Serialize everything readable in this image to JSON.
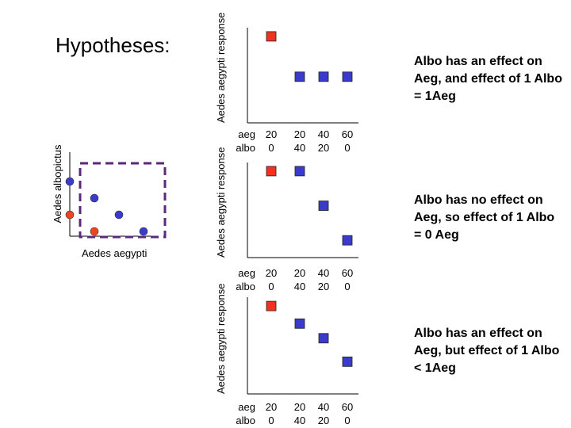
{
  "title": "Hypotheses:",
  "scatter": {
    "xlabel": "Aedes aegypti",
    "ylabel": "Aedes albopictus",
    "points": [
      {
        "x": 0,
        "y": 3,
        "color": "#3a3acc"
      },
      {
        "x": 1,
        "y": 2,
        "color": "#3a3acc"
      },
      {
        "x": 2,
        "y": 1,
        "color": "#3a3acc"
      },
      {
        "x": 3,
        "y": 0,
        "color": "#3a3acc"
      },
      {
        "x": 0,
        "y": 1,
        "color": "#ee4422"
      },
      {
        "x": 1,
        "y": 0,
        "color": "#ee4422"
      }
    ]
  },
  "colors": {
    "red": "#ee3322",
    "blue": "#3a3acc",
    "dashed": "#5a2a7a"
  },
  "row_labels": {
    "aeg": "aeg",
    "albo": "albo"
  },
  "ticks": [
    {
      "aeg": "20",
      "albo": "0"
    },
    {
      "aeg": "20",
      "albo": "40"
    },
    {
      "aeg": "40",
      "albo": "20"
    },
    {
      "aeg": "60",
      "albo": "0"
    }
  ],
  "panels": [
    {
      "ylabel": "Aedes aegypti response",
      "values": [
        3.0,
        1.6,
        1.6,
        1.6
      ],
      "description": "Albo has an effect on Aeg, and effect of 1 Albo = 1Aeg"
    },
    {
      "ylabel": "Aedes aegypti response",
      "values": [
        3.0,
        3.0,
        1.8,
        0.6
      ],
      "description": "Albo has no effect on Aeg, so effect of 1 Albo = 0 Aeg"
    },
    {
      "ylabel": "Aedes aegypti response",
      "values": [
        3.0,
        2.4,
        1.9,
        1.1
      ],
      "description": "Albo has an effect on Aeg, but effect of 1 Albo < 1Aeg"
    }
  ]
}
